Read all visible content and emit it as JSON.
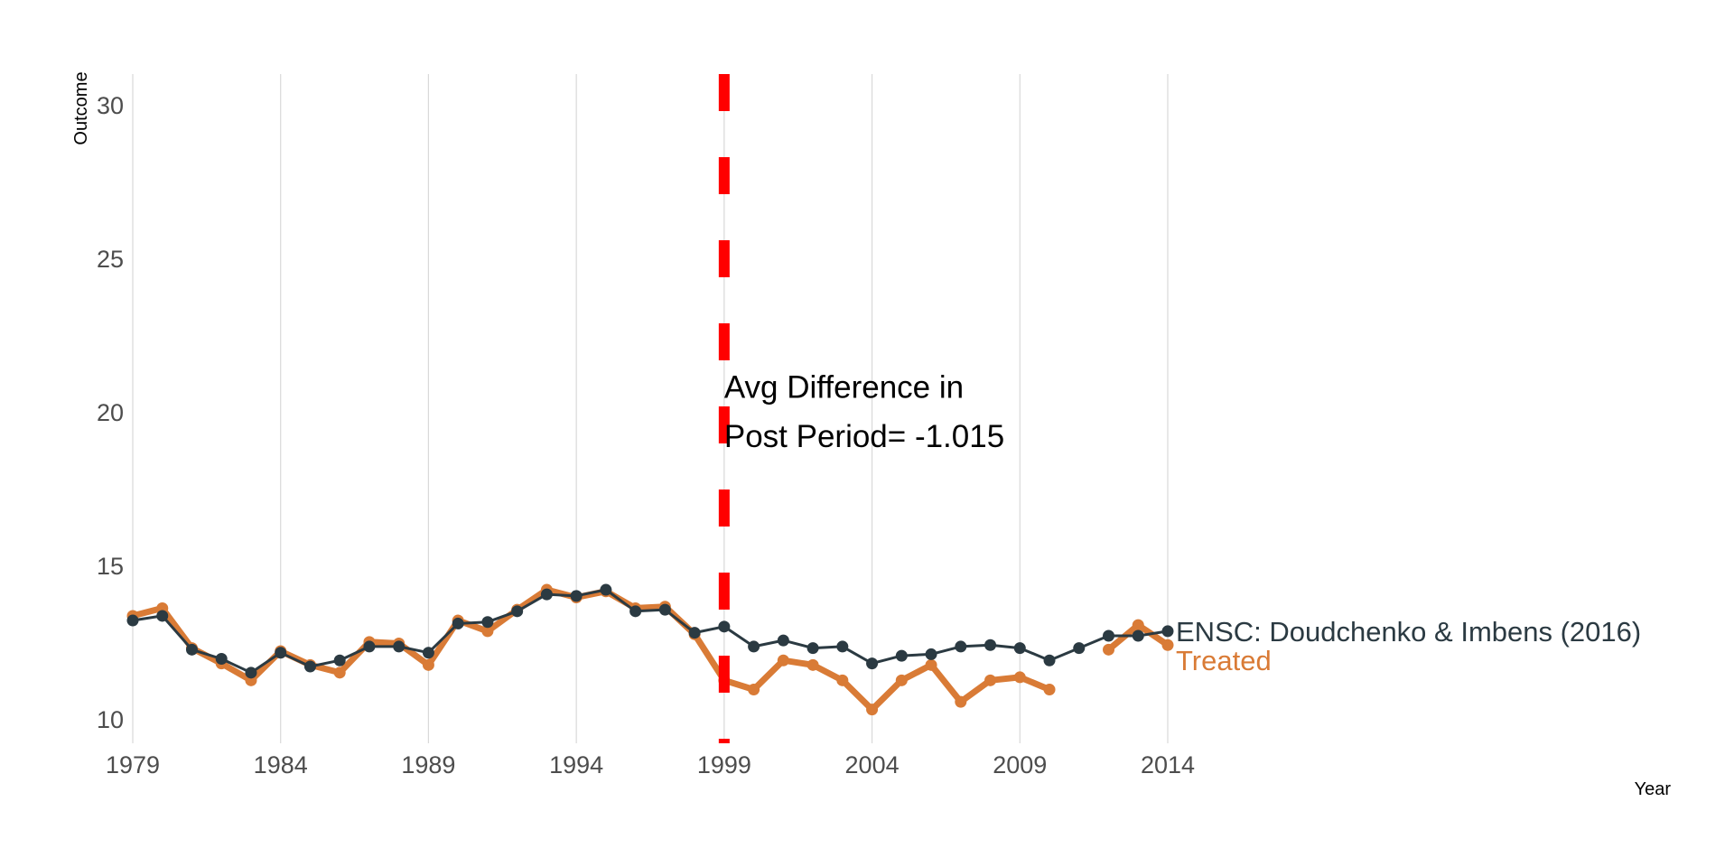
{
  "chart_data": {
    "type": "line",
    "xlabel": "Year",
    "ylabel": "Outcome",
    "xlim": [
      1979,
      2014
    ],
    "ylim": [
      9.2,
      31
    ],
    "x_ticks": [
      1979,
      1984,
      1989,
      1994,
      1999,
      2004,
      2009,
      2014
    ],
    "y_ticks": [
      10,
      15,
      20,
      25,
      30
    ],
    "grid": "vertical",
    "treatment_year": 1999,
    "treatment_line_color": "#ff0000",
    "annotation": {
      "line1": "Avg Difference in",
      "line2": "Post Period= -1.015",
      "x": 1999,
      "y1": 20.8,
      "y2": 19.2
    },
    "x": [
      1979,
      1980,
      1981,
      1982,
      1983,
      1984,
      1985,
      1986,
      1987,
      1988,
      1989,
      1990,
      1991,
      1992,
      1993,
      1994,
      1995,
      1996,
      1997,
      1998,
      1999,
      2000,
      2001,
      2002,
      2003,
      2004,
      2005,
      2006,
      2007,
      2008,
      2009,
      2010,
      2011,
      2012,
      2013,
      2014
    ],
    "series": [
      {
        "name": "Treated",
        "color": "#d97b36",
        "values": [
          13.35,
          13.6,
          12.3,
          11.8,
          11.25,
          12.2,
          11.75,
          11.5,
          12.5,
          12.45,
          11.75,
          13.2,
          12.85,
          13.55,
          14.2,
          13.95,
          14.15,
          13.6,
          13.65,
          12.75,
          11.25,
          10.95,
          11.9,
          11.75,
          11.25,
          10.3,
          11.25,
          11.75,
          10.55,
          11.25,
          11.35,
          10.95,
          null,
          12.25,
          13.05,
          12.4
        ]
      },
      {
        "name": "ENSC: Doudchenko & Imbens (2016)",
        "color": "#2b3a42",
        "values": [
          13.2,
          13.35,
          12.25,
          11.95,
          11.5,
          12.15,
          11.7,
          11.9,
          12.35,
          12.35,
          12.15,
          13.1,
          13.15,
          13.5,
          14.05,
          14.0,
          14.2,
          13.5,
          13.55,
          12.8,
          13.0,
          12.35,
          12.55,
          12.3,
          12.35,
          11.8,
          12.05,
          12.1,
          12.35,
          12.4,
          12.3,
          11.9,
          12.3,
          12.7,
          12.7,
          12.85
        ]
      }
    ]
  }
}
